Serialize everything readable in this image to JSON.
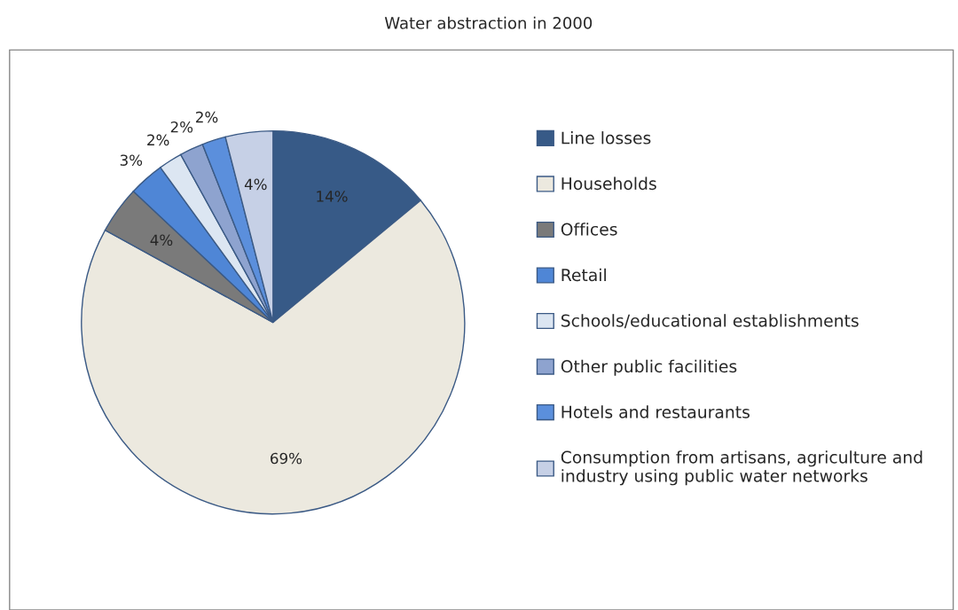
{
  "chart_data": {
    "type": "pie",
    "title": "Water abstraction in 2000",
    "categories": [
      "Line losses",
      "Households",
      "Offices",
      "Retail",
      "Schools/educational establishments",
      "Other public facilities",
      "Hotels and restaurants",
      "Consumption from artisans, agriculture and industry using public water networks"
    ],
    "values": [
      14,
      69,
      4,
      3,
      2,
      2,
      2,
      4
    ],
    "colors": [
      "#375a87",
      "#ece9df",
      "#7a7a7a",
      "#4f86d6",
      "#dce6f2",
      "#8ea3cf",
      "#5b8fdc",
      "#c6d0e6"
    ],
    "value_labels": [
      "14%",
      "69%",
      "4%",
      "3%",
      "2%",
      "2%",
      "2%",
      "4%"
    ],
    "legend": "right"
  }
}
